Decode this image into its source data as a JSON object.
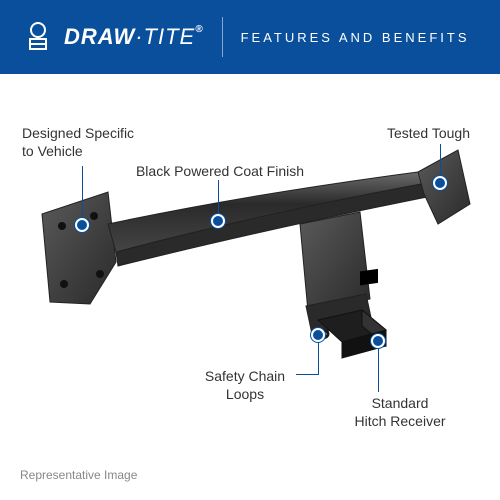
{
  "header": {
    "bg_color": "#0a4f9c",
    "logo_text_a": "DRAW",
    "logo_text_b": "·TITE",
    "subtitle": "FEATURES AND BENEFITS"
  },
  "accent_color": "#0a4f9c",
  "hitch_color": "#3a3a3a",
  "callouts": {
    "c1": "Designed Specific\nto Vehicle",
    "c2": "Black Powered Coat Finish",
    "c3": "Tested Tough",
    "c4": "Safety Chain\nLoops",
    "c5": "Standard\nHitch Receiver"
  },
  "footnote": "Representative Image"
}
